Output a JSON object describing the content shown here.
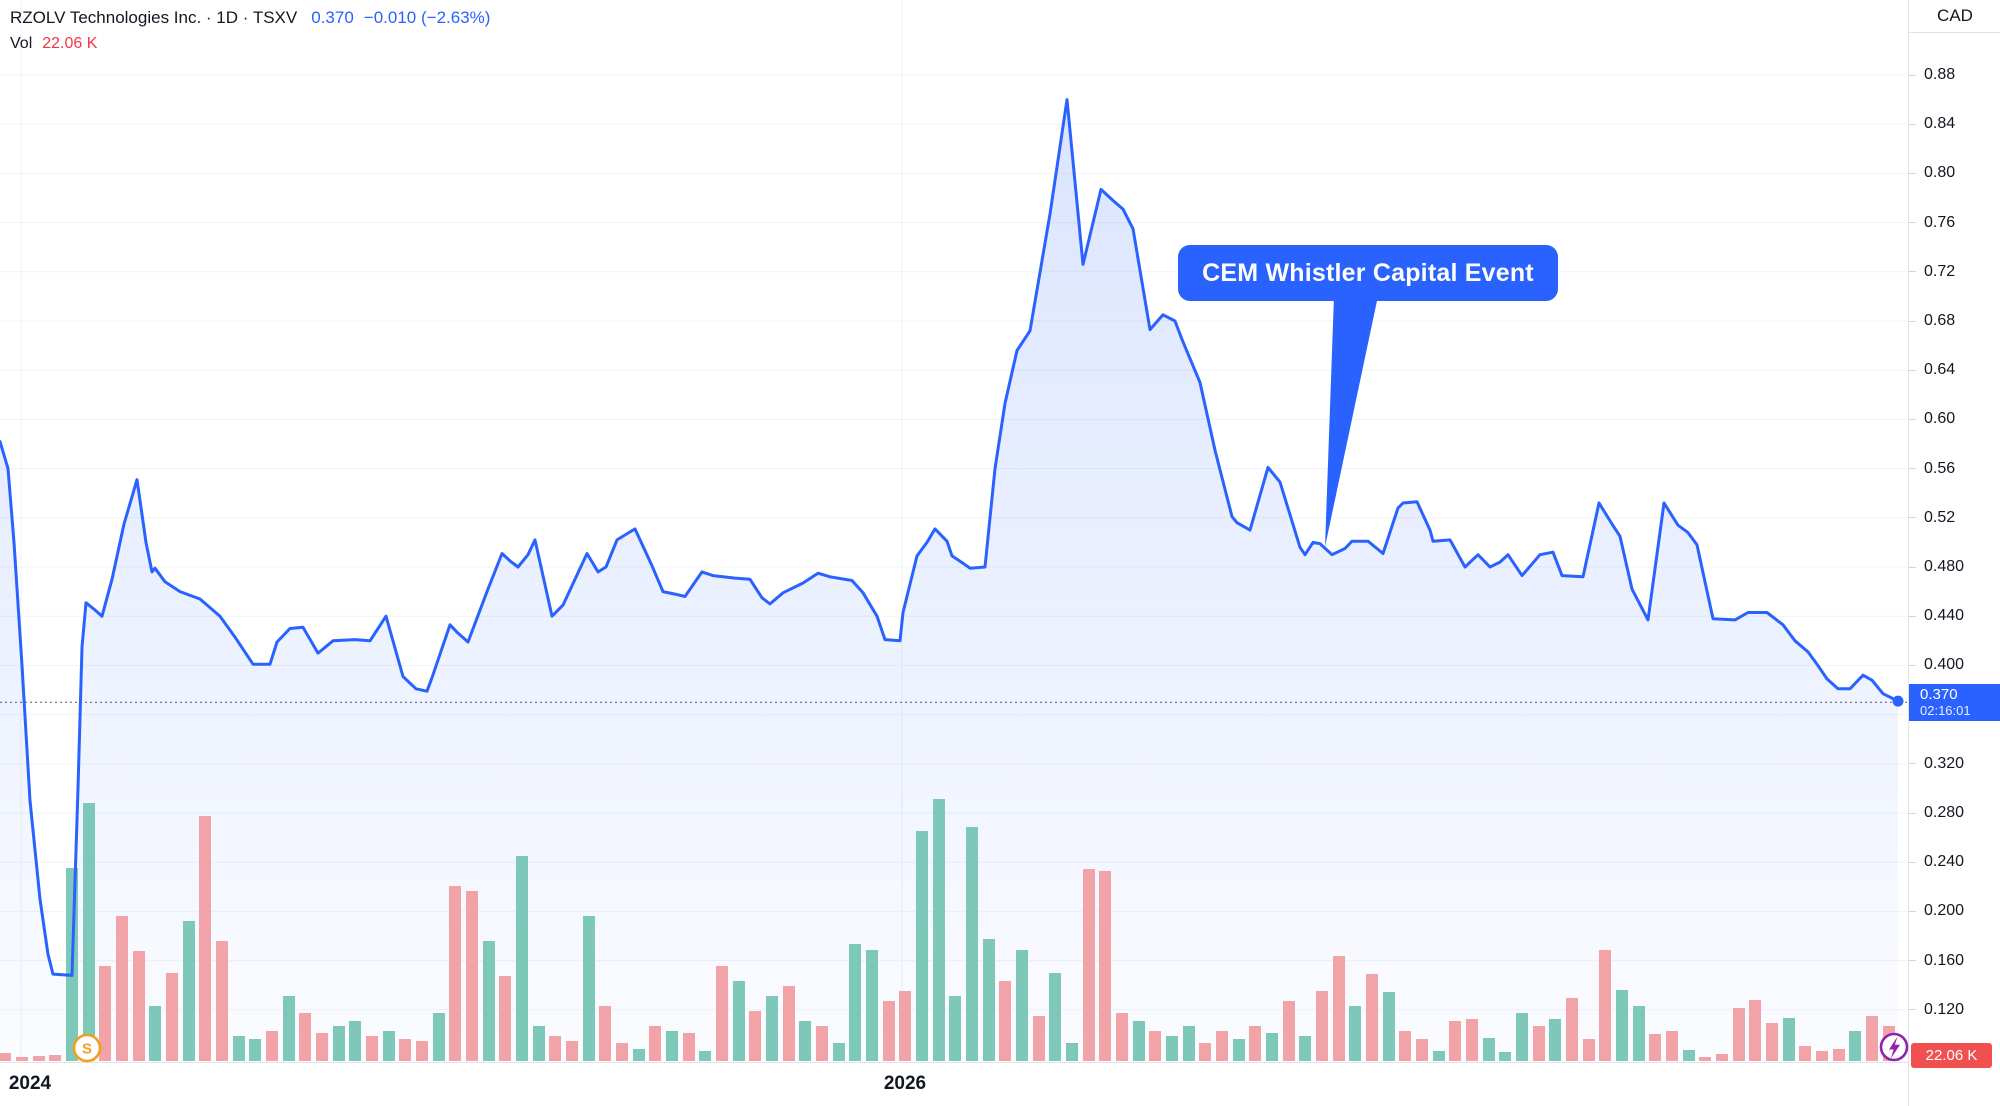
{
  "header": {
    "symbol_line": "RZOLV Technologies Inc. · 1D · TSXV",
    "last_price": "0.370",
    "change": "−0.010 (−2.63%)",
    "vol_label": "Vol",
    "vol_value": "22.06 K"
  },
  "price_axis": {
    "currency": "CAD",
    "ticks": [
      {
        "label": "0.88",
        "price": 0.88
      },
      {
        "label": "0.84",
        "price": 0.84
      },
      {
        "label": "0.80",
        "price": 0.8
      },
      {
        "label": "0.76",
        "price": 0.76
      },
      {
        "label": "0.72",
        "price": 0.72
      },
      {
        "label": "0.68",
        "price": 0.68
      },
      {
        "label": "0.64",
        "price": 0.64
      },
      {
        "label": "0.60",
        "price": 0.6
      },
      {
        "label": "0.56",
        "price": 0.56
      },
      {
        "label": "0.52",
        "price": 0.52
      },
      {
        "label": "0.480",
        "price": 0.48
      },
      {
        "label": "0.440",
        "price": 0.44
      },
      {
        "label": "0.400",
        "price": 0.4
      },
      {
        "label": "0.320",
        "price": 0.32
      },
      {
        "label": "0.280",
        "price": 0.28
      },
      {
        "label": "0.240",
        "price": 0.24
      },
      {
        "label": "0.200",
        "price": 0.2
      },
      {
        "label": "0.160",
        "price": 0.16
      },
      {
        "label": "0.120",
        "price": 0.12
      }
    ],
    "badge": {
      "price": "0.370",
      "countdown": "02:16:01"
    },
    "volume_badge": "22.06 K"
  },
  "time_axis": {
    "labels": [
      {
        "text": "2024",
        "x": 21
      },
      {
        "text": "2026",
        "x": 905
      }
    ]
  },
  "markers": {
    "split_label": "S"
  },
  "annotation": {
    "text": "CEM Whistler Capital Event"
  },
  "colors": {
    "accent_blue": "#2962FF",
    "vol_up": "#7EC8BA",
    "vol_down": "#F2A3A8",
    "red": "#f23645",
    "badge_red": "#f05150",
    "marker_orange": "#efa020",
    "marker_purple": "#8e24aa",
    "grid": "#f1f3f8",
    "text_dark": "#131722"
  },
  "chart_data": {
    "type": "line",
    "title": "RZOLV Technologies Inc. · 1D · TSXV",
    "currency": "CAD",
    "last_price_value": 0.37,
    "last_price_label": "0.370",
    "change": "−0.010 (−2.63%)",
    "countdown": "02:16:01",
    "volume_last": "22.06 K",
    "ylim": [
      0.1,
      0.9
    ],
    "x_ticks": [
      "2024",
      "2026"
    ],
    "legend_position": "top-left",
    "grid": {
      "h_prices": [
        0.88,
        0.84,
        0.8,
        0.76,
        0.72,
        0.68,
        0.64,
        0.6,
        0.56,
        0.52,
        0.48,
        0.44,
        0.4,
        0.36,
        0.32,
        0.28,
        0.24,
        0.2,
        0.16,
        0.12
      ],
      "v_x": [
        21,
        902
      ]
    },
    "annotation": {
      "text": "CEM Whistler Capital Event",
      "tail": [
        [
          1334,
          296
        ],
        [
          1378,
          296
        ],
        [
          1325,
          547
        ]
      ],
      "points_to_price": 0.5
    },
    "price_series": [
      [
        0,
        0.582
      ],
      [
        8,
        0.56
      ],
      [
        14,
        0.5
      ],
      [
        22,
        0.4
      ],
      [
        30,
        0.29
      ],
      [
        40,
        0.21
      ],
      [
        48,
        0.165
      ],
      [
        53,
        0.149
      ],
      [
        72,
        0.148
      ],
      [
        78,
        0.3
      ],
      [
        82,
        0.415
      ],
      [
        86,
        0.451
      ],
      [
        95,
        0.445
      ],
      [
        102,
        0.44
      ],
      [
        112,
        0.47
      ],
      [
        124,
        0.515
      ],
      [
        137,
        0.551
      ],
      [
        146,
        0.5
      ],
      [
        152,
        0.476
      ],
      [
        155,
        0.479
      ],
      [
        165,
        0.468
      ],
      [
        180,
        0.46
      ],
      [
        200,
        0.454
      ],
      [
        220,
        0.44
      ],
      [
        235,
        0.423
      ],
      [
        253,
        0.401
      ],
      [
        270,
        0.401
      ],
      [
        277,
        0.419
      ],
      [
        290,
        0.43
      ],
      [
        303,
        0.431
      ],
      [
        318,
        0.41
      ],
      [
        333,
        0.42
      ],
      [
        355,
        0.421
      ],
      [
        370,
        0.42
      ],
      [
        386,
        0.44
      ],
      [
        403,
        0.391
      ],
      [
        416,
        0.381
      ],
      [
        427,
        0.379
      ],
      [
        432,
        0.39
      ],
      [
        450,
        0.433
      ],
      [
        457,
        0.427
      ],
      [
        468,
        0.419
      ],
      [
        487,
        0.46
      ],
      [
        502,
        0.491
      ],
      [
        510,
        0.485
      ],
      [
        518,
        0.48
      ],
      [
        528,
        0.49
      ],
      [
        535,
        0.502
      ],
      [
        552,
        0.44
      ],
      [
        563,
        0.449
      ],
      [
        575,
        0.47
      ],
      [
        587,
        0.491
      ],
      [
        598,
        0.476
      ],
      [
        606,
        0.48
      ],
      [
        617,
        0.502
      ],
      [
        635,
        0.511
      ],
      [
        652,
        0.481
      ],
      [
        663,
        0.46
      ],
      [
        675,
        0.458
      ],
      [
        685,
        0.456
      ],
      [
        702,
        0.476
      ],
      [
        713,
        0.473
      ],
      [
        735,
        0.471
      ],
      [
        750,
        0.47
      ],
      [
        762,
        0.455
      ],
      [
        770,
        0.45
      ],
      [
        783,
        0.459
      ],
      [
        803,
        0.467
      ],
      [
        818,
        0.475
      ],
      [
        830,
        0.472
      ],
      [
        852,
        0.469
      ],
      [
        863,
        0.459
      ],
      [
        877,
        0.44
      ],
      [
        885,
        0.421
      ],
      [
        900,
        0.42
      ],
      [
        903,
        0.443
      ],
      [
        917,
        0.489
      ],
      [
        927,
        0.5
      ],
      [
        935,
        0.511
      ],
      [
        947,
        0.501
      ],
      [
        952,
        0.489
      ],
      [
        963,
        0.483
      ],
      [
        970,
        0.479
      ],
      [
        985,
        0.48
      ],
      [
        995,
        0.56
      ],
      [
        1005,
        0.613
      ],
      [
        1017,
        0.656
      ],
      [
        1030,
        0.672
      ],
      [
        1042,
        0.729
      ],
      [
        1050,
        0.767
      ],
      [
        1067,
        0.86
      ],
      [
        1083,
        0.726
      ],
      [
        1101,
        0.787
      ],
      [
        1113,
        0.778
      ],
      [
        1123,
        0.771
      ],
      [
        1133,
        0.755
      ],
      [
        1150,
        0.673
      ],
      [
        1163,
        0.685
      ],
      [
        1175,
        0.68
      ],
      [
        1182,
        0.665
      ],
      [
        1200,
        0.63
      ],
      [
        1215,
        0.575
      ],
      [
        1232,
        0.521
      ],
      [
        1237,
        0.516
      ],
      [
        1250,
        0.51
      ],
      [
        1268,
        0.561
      ],
      [
        1280,
        0.549
      ],
      [
        1300,
        0.496
      ],
      [
        1305,
        0.49
      ],
      [
        1313,
        0.5
      ],
      [
        1320,
        0.499
      ],
      [
        1332,
        0.49
      ],
      [
        1345,
        0.495
      ],
      [
        1352,
        0.501
      ],
      [
        1368,
        0.501
      ],
      [
        1383,
        0.491
      ],
      [
        1398,
        0.528
      ],
      [
        1403,
        0.532
      ],
      [
        1417,
        0.533
      ],
      [
        1430,
        0.51
      ],
      [
        1433,
        0.501
      ],
      [
        1450,
        0.502
      ],
      [
        1465,
        0.48
      ],
      [
        1478,
        0.49
      ],
      [
        1490,
        0.48
      ],
      [
        1500,
        0.484
      ],
      [
        1508,
        0.49
      ],
      [
        1522,
        0.473
      ],
      [
        1540,
        0.49
      ],
      [
        1553,
        0.492
      ],
      [
        1562,
        0.473
      ],
      [
        1583,
        0.472
      ],
      [
        1599,
        0.532
      ],
      [
        1612,
        0.515
      ],
      [
        1620,
        0.505
      ],
      [
        1632,
        0.462
      ],
      [
        1648,
        0.437
      ],
      [
        1664,
        0.532
      ],
      [
        1678,
        0.514
      ],
      [
        1688,
        0.508
      ],
      [
        1697,
        0.498
      ],
      [
        1713,
        0.438
      ],
      [
        1735,
        0.437
      ],
      [
        1748,
        0.443
      ],
      [
        1767,
        0.443
      ],
      [
        1783,
        0.433
      ],
      [
        1795,
        0.42
      ],
      [
        1808,
        0.411
      ],
      [
        1817,
        0.401
      ],
      [
        1827,
        0.389
      ],
      [
        1838,
        0.381
      ],
      [
        1850,
        0.381
      ],
      [
        1863,
        0.392
      ],
      [
        1872,
        0.388
      ],
      [
        1883,
        0.377
      ],
      [
        1898,
        0.371
      ]
    ],
    "volume_bars": [
      [
        5,
        8,
        "d"
      ],
      [
        22,
        4,
        "d"
      ],
      [
        39,
        5,
        "d"
      ],
      [
        55,
        6,
        "d"
      ],
      [
        72,
        193,
        "u"
      ],
      [
        89,
        258,
        "u"
      ],
      [
        105,
        95,
        "d"
      ],
      [
        122,
        145,
        "d"
      ],
      [
        139,
        110,
        "d"
      ],
      [
        155,
        55,
        "u"
      ],
      [
        172,
        88,
        "d"
      ],
      [
        189,
        140,
        "u"
      ],
      [
        205,
        245,
        "d"
      ],
      [
        222,
        120,
        "d"
      ],
      [
        239,
        25,
        "u"
      ],
      [
        255,
        22,
        "u"
      ],
      [
        272,
        30,
        "d"
      ],
      [
        289,
        65,
        "u"
      ],
      [
        305,
        48,
        "d"
      ],
      [
        322,
        28,
        "d"
      ],
      [
        339,
        35,
        "u"
      ],
      [
        355,
        40,
        "u"
      ],
      [
        372,
        25,
        "d"
      ],
      [
        389,
        30,
        "u"
      ],
      [
        405,
        22,
        "d"
      ],
      [
        422,
        20,
        "d"
      ],
      [
        439,
        48,
        "u"
      ],
      [
        455,
        175,
        "d"
      ],
      [
        472,
        170,
        "d"
      ],
      [
        489,
        120,
        "u"
      ],
      [
        505,
        85,
        "d"
      ],
      [
        522,
        205,
        "u"
      ],
      [
        539,
        35,
        "u"
      ],
      [
        555,
        25,
        "d"
      ],
      [
        572,
        20,
        "d"
      ],
      [
        589,
        145,
        "u"
      ],
      [
        605,
        55,
        "d"
      ],
      [
        622,
        18,
        "d"
      ],
      [
        639,
        12,
        "u"
      ],
      [
        655,
        35,
        "d"
      ],
      [
        672,
        30,
        "u"
      ],
      [
        689,
        28,
        "d"
      ],
      [
        705,
        10,
        "u"
      ],
      [
        722,
        95,
        "d"
      ],
      [
        739,
        80,
        "u"
      ],
      [
        755,
        50,
        "d"
      ],
      [
        772,
        65,
        "u"
      ],
      [
        789,
        75,
        "d"
      ],
      [
        805,
        40,
        "u"
      ],
      [
        822,
        35,
        "d"
      ],
      [
        839,
        18,
        "u"
      ],
      [
        855,
        117,
        "u"
      ],
      [
        872,
        111,
        "u"
      ],
      [
        889,
        60,
        "d"
      ],
      [
        905,
        70,
        "d"
      ],
      [
        922,
        230,
        "u"
      ],
      [
        939,
        262,
        "u"
      ],
      [
        955,
        65,
        "u"
      ],
      [
        972,
        234,
        "u"
      ],
      [
        989,
        122,
        "u"
      ],
      [
        1005,
        80,
        "d"
      ],
      [
        1022,
        111,
        "u"
      ],
      [
        1039,
        45,
        "d"
      ],
      [
        1055,
        88,
        "u"
      ],
      [
        1072,
        18,
        "u"
      ],
      [
        1089,
        192,
        "d"
      ],
      [
        1105,
        190,
        "d"
      ],
      [
        1122,
        48,
        "d"
      ],
      [
        1139,
        40,
        "u"
      ],
      [
        1155,
        30,
        "d"
      ],
      [
        1172,
        25,
        "u"
      ],
      [
        1189,
        35,
        "u"
      ],
      [
        1205,
        18,
        "d"
      ],
      [
        1222,
        30,
        "d"
      ],
      [
        1239,
        22,
        "u"
      ],
      [
        1255,
        35,
        "d"
      ],
      [
        1272,
        28,
        "u"
      ],
      [
        1289,
        60,
        "d"
      ],
      [
        1305,
        25,
        "u"
      ],
      [
        1322,
        70,
        "d"
      ],
      [
        1339,
        105,
        "d"
      ],
      [
        1355,
        55,
        "u"
      ],
      [
        1372,
        87,
        "d"
      ],
      [
        1389,
        69,
        "u"
      ],
      [
        1405,
        30,
        "d"
      ],
      [
        1422,
        22,
        "d"
      ],
      [
        1439,
        10,
        "u"
      ],
      [
        1455,
        40,
        "d"
      ],
      [
        1472,
        42,
        "d"
      ],
      [
        1489,
        23,
        "u"
      ],
      [
        1505,
        9,
        "u"
      ],
      [
        1522,
        48,
        "u"
      ],
      [
        1539,
        35,
        "d"
      ],
      [
        1555,
        42,
        "u"
      ],
      [
        1572,
        63,
        "d"
      ],
      [
        1589,
        22,
        "d"
      ],
      [
        1605,
        111,
        "d"
      ],
      [
        1622,
        71,
        "u"
      ],
      [
        1639,
        55,
        "u"
      ],
      [
        1655,
        27,
        "d"
      ],
      [
        1672,
        30,
        "d"
      ],
      [
        1689,
        11,
        "u"
      ],
      [
        1705,
        4,
        "d"
      ],
      [
        1722,
        7,
        "d"
      ],
      [
        1739,
        53,
        "d"
      ],
      [
        1755,
        61,
        "d"
      ],
      [
        1772,
        38,
        "d"
      ],
      [
        1789,
        43,
        "u"
      ],
      [
        1805,
        15,
        "d"
      ],
      [
        1822,
        10,
        "d"
      ],
      [
        1839,
        12,
        "d"
      ],
      [
        1855,
        30,
        "u"
      ],
      [
        1872,
        45,
        "d"
      ],
      [
        1889,
        35,
        "d"
      ]
    ]
  }
}
